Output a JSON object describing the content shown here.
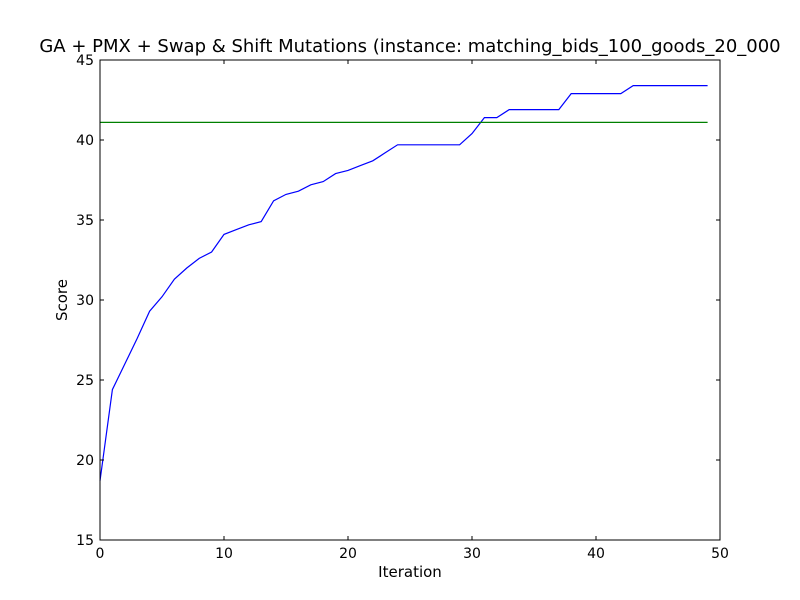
{
  "chart_data": {
    "type": "line",
    "title": "GA + PMX + Swap & Shift Mutations (instance: matching_bids_100_goods_20_000",
    "xlabel": "Iteration",
    "ylabel": "Score",
    "xlim": [
      0,
      50
    ],
    "ylim": [
      15,
      45
    ],
    "x_ticks": [
      0,
      10,
      20,
      30,
      40,
      50
    ],
    "y_ticks": [
      15,
      20,
      25,
      30,
      35,
      40,
      45
    ],
    "grid": false,
    "legend": "none",
    "series": [
      {
        "color": "#0000ff",
        "x": [
          0,
          1,
          2,
          3,
          4,
          5,
          6,
          7,
          8,
          9,
          10,
          11,
          12,
          13,
          14,
          15,
          16,
          17,
          18,
          19,
          20,
          21,
          22,
          23,
          24,
          25,
          26,
          27,
          28,
          29,
          30,
          31,
          32,
          33,
          34,
          35,
          36,
          37,
          38,
          39,
          40,
          41,
          42,
          43,
          44,
          45,
          46,
          47,
          48,
          49
        ],
        "y": [
          18.7,
          24.4,
          26.0,
          27.6,
          29.3,
          30.2,
          31.3,
          32.0,
          32.6,
          33.0,
          34.1,
          34.4,
          34.7,
          34.9,
          36.2,
          36.6,
          36.8,
          37.2,
          37.4,
          37.9,
          38.1,
          38.4,
          38.7,
          39.2,
          39.7,
          39.7,
          39.7,
          39.7,
          39.7,
          39.7,
          40.4,
          41.4,
          41.4,
          41.9,
          41.9,
          41.9,
          41.9,
          41.9,
          42.9,
          42.9,
          42.9,
          42.9,
          42.9,
          43.4,
          43.4,
          43.4,
          43.4,
          43.4,
          43.4,
          43.4
        ]
      },
      {
        "color": "#008000",
        "x": [
          0,
          49
        ],
        "y": [
          41.1,
          41.1
        ]
      }
    ]
  }
}
